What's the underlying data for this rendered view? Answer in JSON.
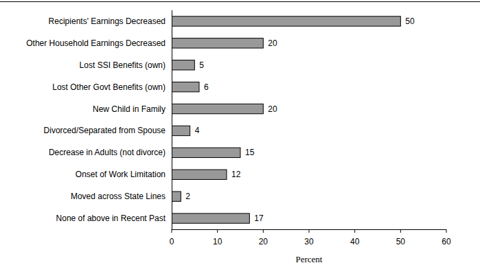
{
  "chart_data": {
    "type": "bar",
    "orientation": "horizontal",
    "categories": [
      "Recipients' Earnings Decreased",
      "Other Household Earnings Decreased",
      "Lost SSI Benefits (own)",
      "Lost Other Govt Benefits (own)",
      "New Child in Family",
      "Divorced/Separated from Spouse",
      "Decrease in Adults (not divorce)",
      "Onset of Work Limitation",
      "Moved across State Lines",
      "None of above in Recent Past"
    ],
    "values": [
      50,
      20,
      5,
      6,
      20,
      4,
      15,
      12,
      2,
      17
    ],
    "color": "#999999",
    "x_label": "Percent",
    "xlim": [
      0,
      60
    ],
    "xticks": [
      0,
      10,
      20,
      30,
      40,
      50,
      60
    ],
    "grid": false,
    "data_labels": true
  }
}
